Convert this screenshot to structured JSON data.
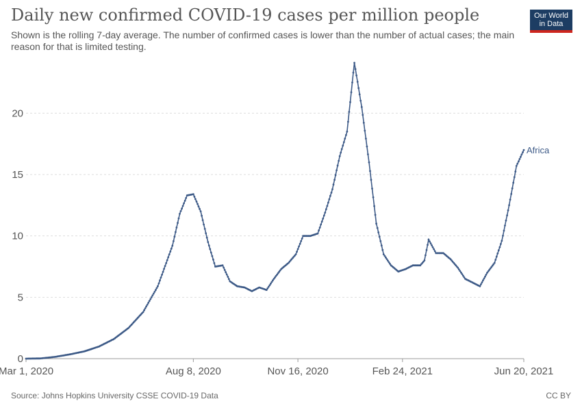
{
  "header": {
    "title": "Daily new confirmed COVID-19 cases per million people",
    "subtitle": "Shown is the rolling 7-day average. The number of confirmed cases is lower than the number of actual cases; the main reason for that is limited testing."
  },
  "logo": {
    "line1": "Our World",
    "line2": "in Data"
  },
  "footer": {
    "source": "Source: Johns Hopkins University CSSE COVID-19 Data",
    "license": "CC BY"
  },
  "colors": {
    "series": "#3d5a87",
    "grid": "#dddddd",
    "axis": "#999999",
    "logo_bg": "#1d3d63",
    "logo_accent": "#ce261e"
  },
  "chart_data": {
    "type": "line",
    "title": "Daily new confirmed COVID-19 cases per million people",
    "subtitle": "Shown is the rolling 7-day average. The number of confirmed cases is lower than the number of actual cases; the main reason for that is limited testing.",
    "xlabel": "",
    "ylabel": "",
    "ylim": [
      0,
      24.2
    ],
    "xlim": [
      "2020-03-01",
      "2021-06-20"
    ],
    "grid": "horizontal-dashed",
    "x_ticks": [
      "Mar 1, 2020",
      "Aug 8, 2020",
      "Nov 16, 2020",
      "Feb 24, 2021",
      "Jun 20, 2021"
    ],
    "y_ticks": [
      0,
      5,
      10,
      15,
      20
    ],
    "series": [
      {
        "name": "Africa",
        "points": [
          [
            "2020-03-01",
            0
          ],
          [
            "2020-03-15",
            0.02
          ],
          [
            "2020-03-29",
            0.15
          ],
          [
            "2020-04-12",
            0.35
          ],
          [
            "2020-04-26",
            0.6
          ],
          [
            "2020-05-10",
            1.0
          ],
          [
            "2020-05-24",
            1.6
          ],
          [
            "2020-06-07",
            2.5
          ],
          [
            "2020-06-21",
            3.8
          ],
          [
            "2020-07-05",
            5.9
          ],
          [
            "2020-07-19",
            9.2
          ],
          [
            "2020-07-26",
            11.8
          ],
          [
            "2020-08-02",
            13.3
          ],
          [
            "2020-08-08",
            13.4
          ],
          [
            "2020-08-15",
            12.0
          ],
          [
            "2020-08-22",
            9.5
          ],
          [
            "2020-08-29",
            7.5
          ],
          [
            "2020-09-05",
            7.6
          ],
          [
            "2020-09-12",
            6.3
          ],
          [
            "2020-09-19",
            5.9
          ],
          [
            "2020-09-26",
            5.8
          ],
          [
            "2020-10-03",
            5.5
          ],
          [
            "2020-10-10",
            5.8
          ],
          [
            "2020-10-17",
            5.6
          ],
          [
            "2020-10-24",
            6.5
          ],
          [
            "2020-10-31",
            7.3
          ],
          [
            "2020-11-07",
            7.8
          ],
          [
            "2020-11-14",
            8.5
          ],
          [
            "2020-11-21",
            10.0
          ],
          [
            "2020-11-28",
            10.0
          ],
          [
            "2020-12-05",
            10.2
          ],
          [
            "2020-12-12",
            11.9
          ],
          [
            "2020-12-19",
            13.8
          ],
          [
            "2020-12-26",
            16.5
          ],
          [
            "2021-01-02",
            18.5
          ],
          [
            "2021-01-09",
            24.1
          ],
          [
            "2021-01-16",
            20.5
          ],
          [
            "2021-01-23",
            16.0
          ],
          [
            "2021-01-30",
            11.0
          ],
          [
            "2021-02-06",
            8.5
          ],
          [
            "2021-02-13",
            7.6
          ],
          [
            "2021-02-20",
            7.1
          ],
          [
            "2021-02-27",
            7.3
          ],
          [
            "2021-03-06",
            7.6
          ],
          [
            "2021-03-13",
            7.6
          ],
          [
            "2021-03-17",
            8.0
          ],
          [
            "2021-03-21",
            9.7
          ],
          [
            "2021-03-28",
            8.6
          ],
          [
            "2021-04-04",
            8.6
          ],
          [
            "2021-04-11",
            8.1
          ],
          [
            "2021-04-18",
            7.4
          ],
          [
            "2021-04-25",
            6.5
          ],
          [
            "2021-05-02",
            6.2
          ],
          [
            "2021-05-09",
            5.9
          ],
          [
            "2021-05-16",
            7.0
          ],
          [
            "2021-05-23",
            7.8
          ],
          [
            "2021-05-30",
            9.6
          ],
          [
            "2021-06-06",
            12.5
          ],
          [
            "2021-06-13",
            15.7
          ],
          [
            "2021-06-20",
            17.0
          ]
        ]
      }
    ]
  }
}
